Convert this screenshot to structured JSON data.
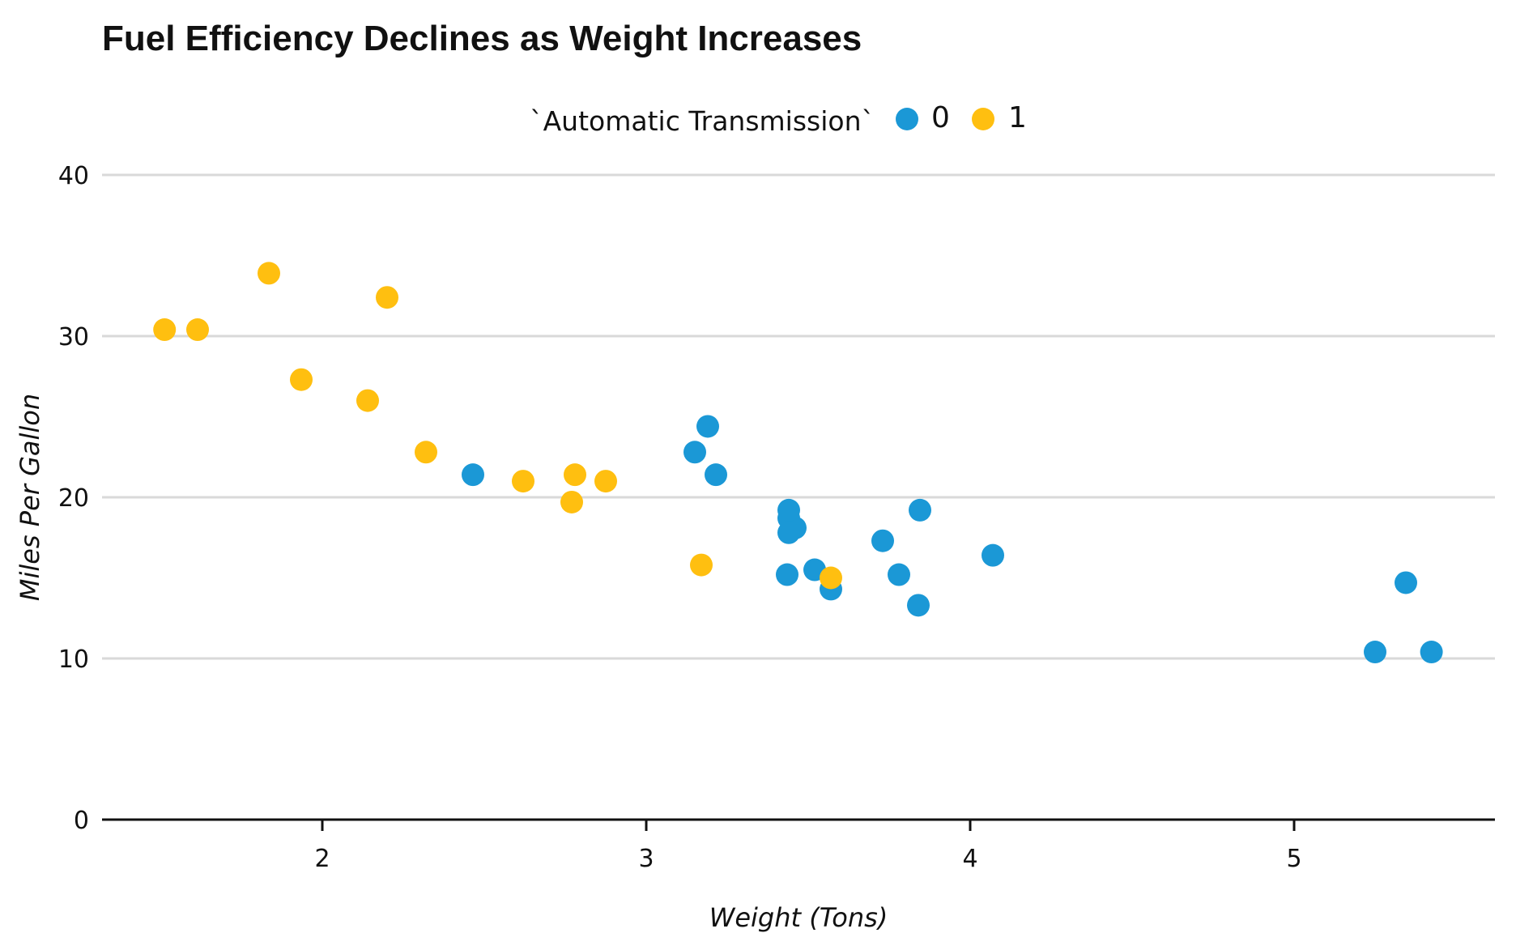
{
  "chart_data": {
    "type": "scatter",
    "title": "Fuel Efficiency Declines as Weight Increases",
    "xlabel": "Weight (Tons)",
    "ylabel": "Miles Per Gallon",
    "xlim": [
      1.32,
      5.62
    ],
    "ylim": [
      0,
      40
    ],
    "x_ticks": [
      2,
      3,
      4,
      5
    ],
    "y_ticks": [
      0,
      10,
      20,
      30,
      40
    ],
    "grid": "horizontal",
    "legend": {
      "title": "`Automatic Transmission`",
      "position": "top",
      "entries": [
        {
          "label": "0",
          "color": "#1b98d6"
        },
        {
          "label": "1",
          "color": "#ffbf10"
        }
      ]
    },
    "series": [
      {
        "name": "0",
        "color": "#1b98d6",
        "points": [
          [
            2.465,
            21.4
          ],
          [
            3.44,
            18.7
          ],
          [
            3.46,
            18.1
          ],
          [
            3.57,
            14.3
          ],
          [
            3.19,
            24.4
          ],
          [
            3.15,
            22.8
          ],
          [
            3.44,
            19.2
          ],
          [
            3.44,
            17.8
          ],
          [
            4.07,
            16.4
          ],
          [
            3.73,
            17.3
          ],
          [
            3.78,
            15.2
          ],
          [
            5.25,
            10.4
          ],
          [
            5.424,
            10.4
          ],
          [
            5.345,
            14.7
          ],
          [
            3.52,
            15.5
          ],
          [
            3.435,
            15.2
          ],
          [
            3.84,
            13.3
          ],
          [
            3.845,
            19.2
          ],
          [
            3.215,
            21.4
          ]
        ]
      },
      {
        "name": "1",
        "color": "#ffbf10",
        "points": [
          [
            2.62,
            21.0
          ],
          [
            2.875,
            21.0
          ],
          [
            2.32,
            22.8
          ],
          [
            2.2,
            32.4
          ],
          [
            1.615,
            30.4
          ],
          [
            1.835,
            33.9
          ],
          [
            1.935,
            27.3
          ],
          [
            2.14,
            26.0
          ],
          [
            1.513,
            30.4
          ],
          [
            3.17,
            15.8
          ],
          [
            2.77,
            19.7
          ],
          [
            2.78,
            21.4
          ],
          [
            3.57,
            15.0
          ]
        ]
      }
    ]
  }
}
